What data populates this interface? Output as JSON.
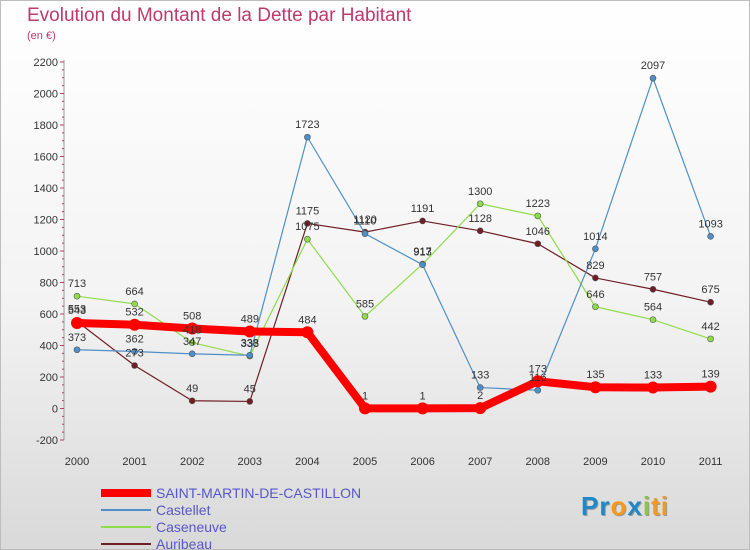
{
  "title": "Evolution du Montant de la Dette par Habitant",
  "unit_label": "(en €)",
  "logo": {
    "parts": [
      {
        "text": "Pr",
        "color": "#1e88c8"
      },
      {
        "text": "o",
        "color": "#f39a1e"
      },
      {
        "text": "x",
        "color": "#1e88c8"
      },
      {
        "text": "i",
        "color": "#8cc63f"
      },
      {
        "text": "ti",
        "color": "#f39a1e"
      }
    ]
  },
  "chart_data": {
    "type": "line",
    "title": "Evolution du Montant de la Dette par Habitant",
    "ylabel": "(en €)",
    "xlabel": "",
    "categories": [
      "2000",
      "2001",
      "2002",
      "2003",
      "2004",
      "2005",
      "2006",
      "2007",
      "2008",
      "2009",
      "2010",
      "2011"
    ],
    "ylim": [
      -200,
      2200
    ],
    "yticks": [
      -200,
      0,
      200,
      400,
      600,
      800,
      1000,
      1200,
      1400,
      1600,
      1800,
      2000,
      2200
    ],
    "grid": false,
    "legend_position": "bottom-left",
    "series": [
      {
        "name": "SAINT-MARTIN-DE-CASTILLON",
        "color": "#ff0000",
        "values": [
          543,
          532,
          508,
          489,
          484,
          1,
          1,
          2,
          173,
          135,
          133,
          139
        ]
      },
      {
        "name": "Castellet",
        "color": "#4f8fc8",
        "values": [
          373,
          362,
          347,
          338,
          1723,
          1110,
          913,
          133,
          116,
          1014,
          2097,
          1093
        ]
      },
      {
        "name": "Caseneuve",
        "color": "#8fdc4a",
        "values": [
          713,
          664,
          418,
          333,
          1075,
          585,
          917,
          1300,
          1223,
          646,
          564,
          442
        ]
      },
      {
        "name": "Auribeau",
        "color": "#6e1e24",
        "values": [
          553,
          273,
          49,
          45,
          1175,
          1120,
          1191,
          1128,
          1046,
          829,
          757,
          675
        ]
      }
    ]
  }
}
